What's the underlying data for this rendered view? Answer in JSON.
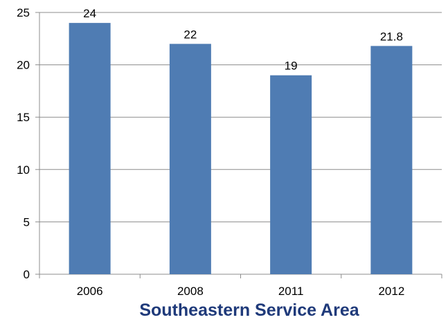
{
  "chart_data": {
    "type": "bar",
    "categories": [
      "2006",
      "2008",
      "2011",
      "2012"
    ],
    "values": [
      24,
      22,
      19,
      21.8
    ],
    "data_labels": [
      "24",
      "22",
      "19",
      "21.8"
    ],
    "title": "Southeastern Service Area",
    "xlabel": "",
    "ylabel": "",
    "ylim": [
      0,
      25
    ],
    "yticks": [
      0,
      5,
      10,
      15,
      20,
      25
    ],
    "grid": true,
    "legend": "none",
    "colors": {
      "bar": "#4f7cb3",
      "grid": "#8c8c8c",
      "axis": "#8c8c8c",
      "title": "#1f3a7a"
    }
  }
}
